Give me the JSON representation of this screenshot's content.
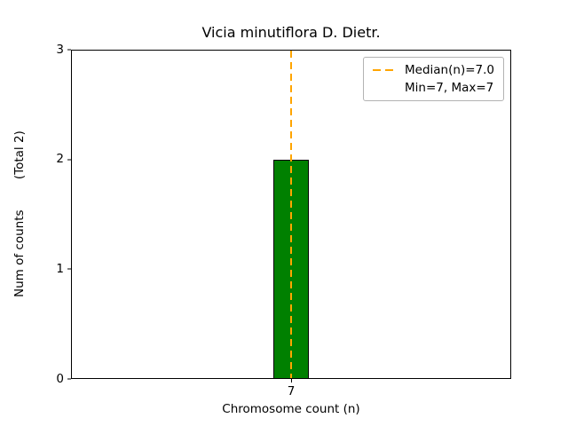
{
  "chart_data": {
    "type": "bar",
    "title": "Vicia minutiflora D. Dietr.",
    "xlabel": "Chromosome count (n)",
    "ylabel": "Num of counts        (Total 2)",
    "total_label": "(Total 2)",
    "categories": [
      "7"
    ],
    "values": [
      2
    ],
    "ylim": [
      0,
      3
    ],
    "yticks": [
      0,
      1,
      2,
      3
    ],
    "bar_color": "#008000",
    "bar_edge_color": "#000000",
    "median_line": {
      "value": 7.0,
      "color": "#ffa500",
      "style": "dashed"
    },
    "legend": {
      "position": "upper right",
      "entries": [
        {
          "label": "Median(n)=7.0",
          "has_line_sample": true
        },
        {
          "label": "Min=7, Max=7",
          "has_line_sample": false
        }
      ]
    }
  }
}
